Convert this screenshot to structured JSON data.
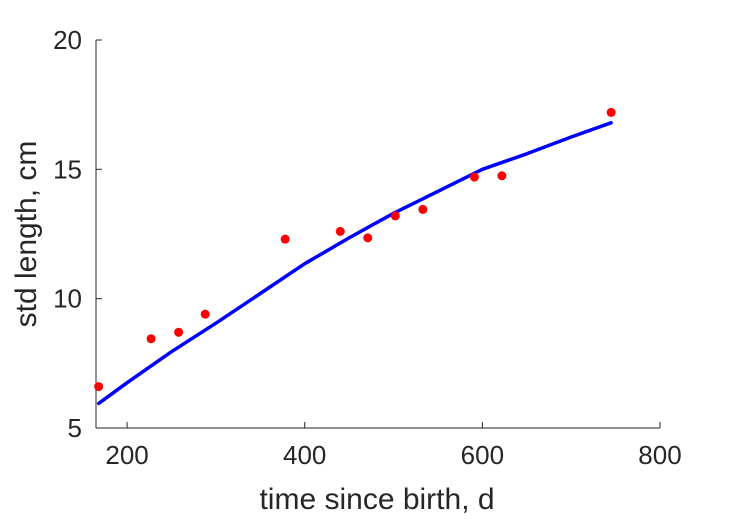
{
  "chart_data": {
    "type": "scatter",
    "xlabel": "time since birth, d",
    "ylabel": "std length, cm",
    "xlim": [
      165,
      800
    ],
    "ylim": [
      5,
      20
    ],
    "x_ticks": [
      200,
      400,
      600,
      800
    ],
    "y_ticks": [
      5,
      10,
      15,
      20
    ],
    "grid": false,
    "series": [
      {
        "kind": "points",
        "color": "#ff0000",
        "x": [
          168,
          227,
          258,
          288,
          378,
          440,
          471,
          502,
          533,
          591,
          622,
          745
        ],
        "y": [
          6.6,
          8.45,
          8.7,
          9.4,
          12.3,
          12.6,
          12.35,
          13.2,
          13.45,
          14.7,
          14.75,
          17.2
        ]
      },
      {
        "kind": "line",
        "color": "#0000ff",
        "x": [
          168,
          200,
          250,
          300,
          350,
          400,
          450,
          500,
          550,
          600,
          650,
          700,
          745
        ],
        "y": [
          5.95,
          6.75,
          7.95,
          9.05,
          10.2,
          11.35,
          12.35,
          13.3,
          14.15,
          15.0,
          15.6,
          16.25,
          16.8
        ]
      }
    ]
  }
}
